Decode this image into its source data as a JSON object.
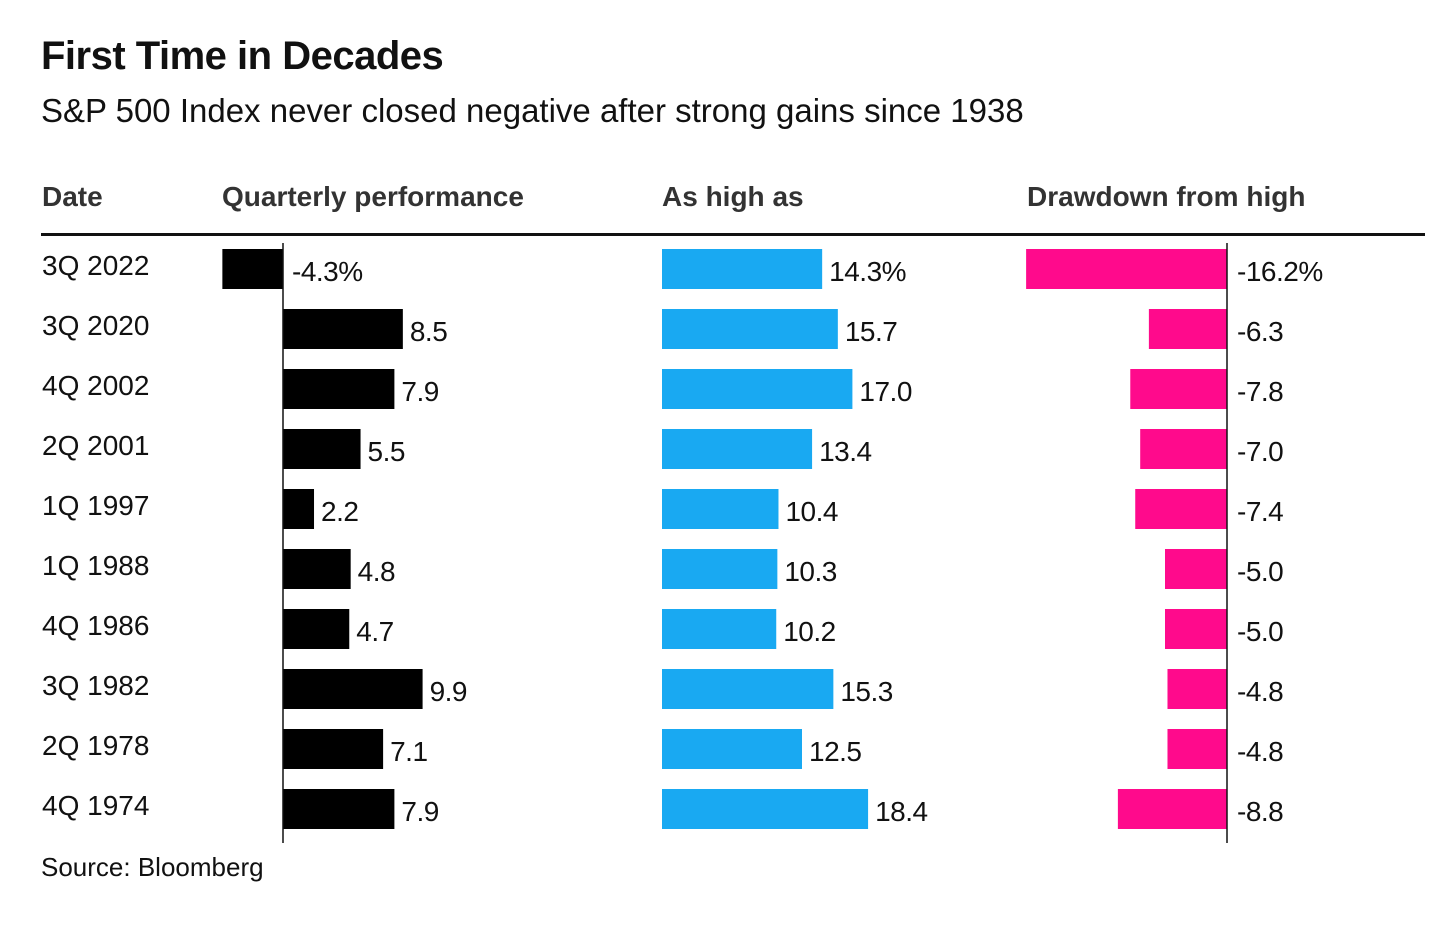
{
  "chart_data": {
    "type": "bar",
    "title": "First Time in Decades",
    "subtitle": "S&P 500 Index never closed negative after strong gains since 1938",
    "source": "Source: Bloomberg",
    "columns": {
      "date": "Date",
      "quarterly": "Quarterly performance",
      "high": "As high as",
      "drawdown": "Drawdown from high"
    },
    "categories": [
      "3Q 2022",
      "3Q 2020",
      "4Q 2002",
      "2Q 2001",
      "1Q 1997",
      "1Q 1988",
      "4Q 1986",
      "3Q 1982",
      "2Q 1978",
      "4Q 1974"
    ],
    "series": [
      {
        "key": "quarterly",
        "values": [
          -4.3,
          8.5,
          7.9,
          5.5,
          2.2,
          4.8,
          4.7,
          9.9,
          7.1,
          7.9
        ],
        "labels": [
          "-4.3%",
          "8.5",
          "7.9",
          "5.5",
          "2.2",
          "4.8",
          "4.7",
          "9.9",
          "7.1",
          "7.9"
        ]
      },
      {
        "key": "high",
        "values": [
          14.3,
          15.7,
          17.0,
          13.4,
          10.4,
          10.3,
          10.2,
          15.3,
          12.5,
          18.4
        ],
        "labels": [
          "14.3%",
          "15.7",
          "17.0",
          "13.4",
          "10.4",
          "10.3",
          "10.2",
          "15.3",
          "12.5",
          "18.4"
        ]
      },
      {
        "key": "drawdown",
        "values": [
          -16.2,
          -6.3,
          -7.8,
          -7.0,
          -7.4,
          -5.0,
          -5.0,
          -4.8,
          -4.8,
          -8.8
        ],
        "labels": [
          "-16.2%",
          "-6.3",
          "-7.8",
          "-7.0",
          "-7.4",
          "-5.0",
          "-5.0",
          "-4.8",
          "-4.8",
          "-8.8"
        ]
      }
    ],
    "colors": {
      "quarterly": "#000000",
      "high": "#19A9F2",
      "drawdown": "#FF0A8C",
      "text": "#111111"
    }
  }
}
